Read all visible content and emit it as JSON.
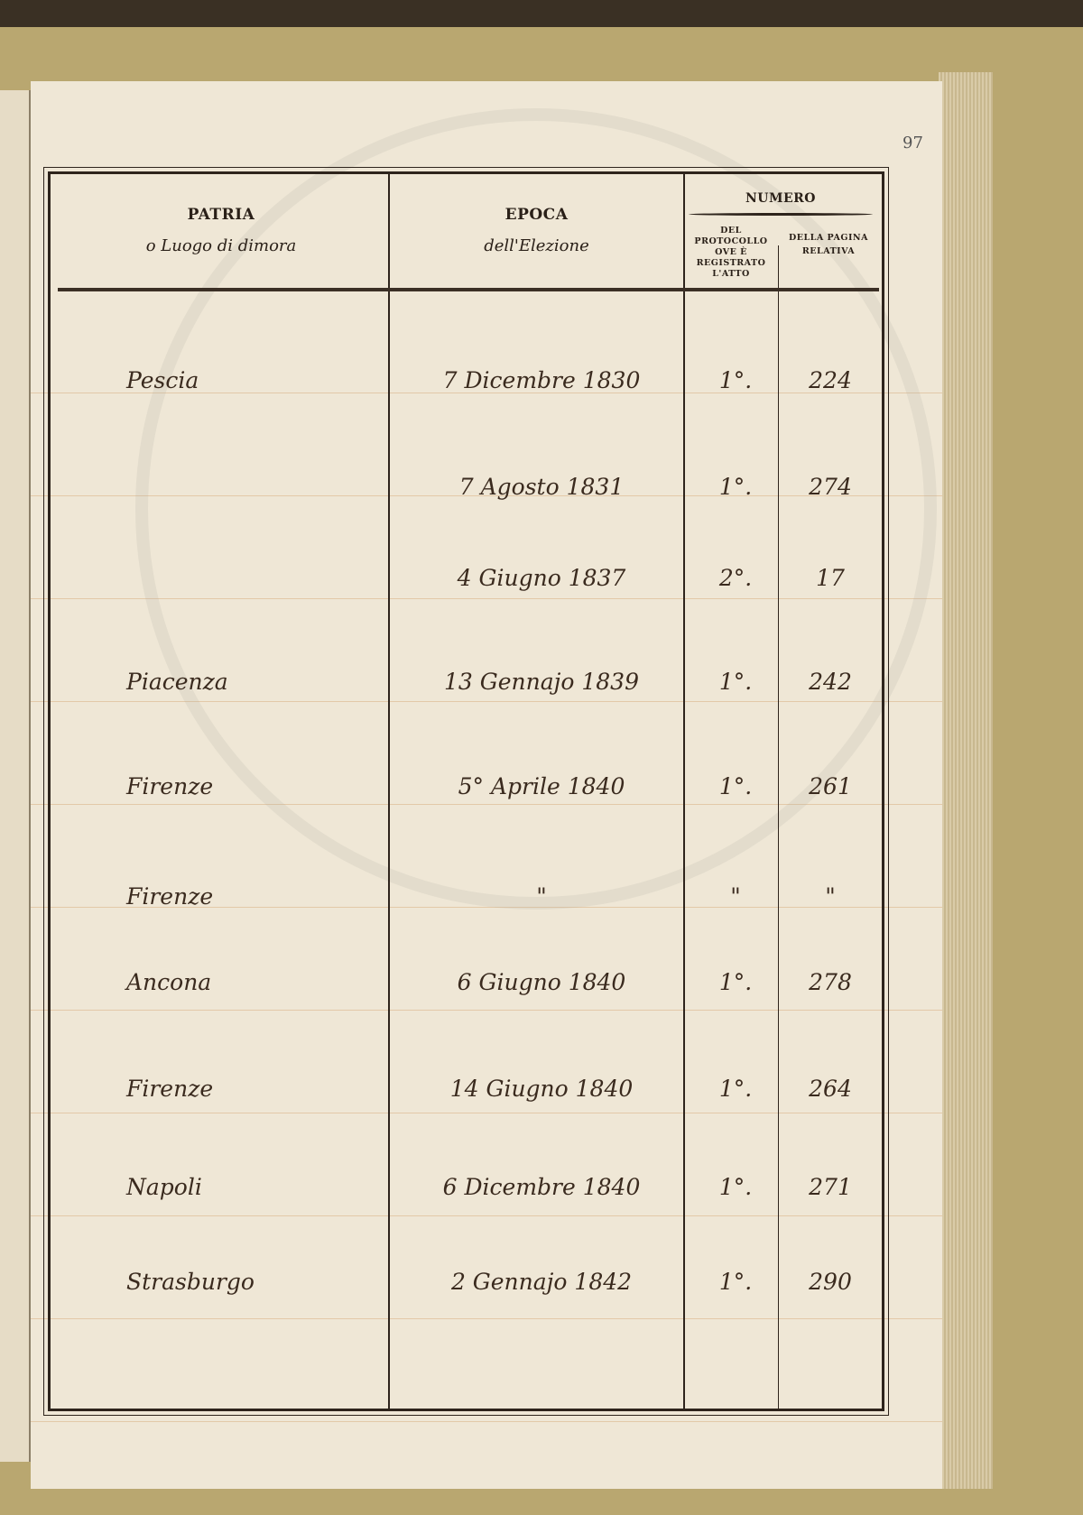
{
  "page_number": "97",
  "header": {
    "patria": {
      "title": "PATRIA",
      "subtitle": "o Luogo di dimora"
    },
    "epoca": {
      "title": "EPOCA",
      "subtitle": "dell'Elezione"
    },
    "numero": {
      "title": "NUMERO",
      "protocollo": "DEL PROTOCOLLO OVE È REGISTRATO L'ATTO",
      "pagina": "DELLA PAGINA RELATIVA"
    }
  },
  "rows": [
    {
      "patria": "Pescia",
      "epoca": "7 Dicembre 1830",
      "protocollo": "1°.",
      "pagina": "224"
    },
    {
      "patria": "",
      "epoca": "7 Agosto 1831",
      "protocollo": "1°.",
      "pagina": "274"
    },
    {
      "patria": "",
      "epoca": "4 Giugno 1837",
      "protocollo": "2°.",
      "pagina": "17"
    },
    {
      "patria": "Piacenza",
      "epoca": "13 Gennajo 1839",
      "protocollo": "1°.",
      "pagina": "242"
    },
    {
      "patria": "Firenze",
      "epoca": "5° Aprile 1840",
      "protocollo": "1°.",
      "pagina": "261"
    },
    {
      "patria": "Firenze",
      "epoca": "\"",
      "protocollo": "\"",
      "pagina": "\""
    },
    {
      "patria": "Ancona",
      "epoca": "6 Giugno 1840",
      "protocollo": "1°.",
      "pagina": "278"
    },
    {
      "patria": "Firenze",
      "epoca": "14 Giugno 1840",
      "protocollo": "1°.",
      "pagina": "264"
    },
    {
      "patria": "Napoli",
      "epoca": "6 Dicembre 1840",
      "protocollo": "1°.",
      "pagina": "271"
    },
    {
      "patria": "Strasburgo",
      "epoca": "2 Gennajo 1842",
      "protocollo": "1°.",
      "pagina": "290"
    }
  ]
}
